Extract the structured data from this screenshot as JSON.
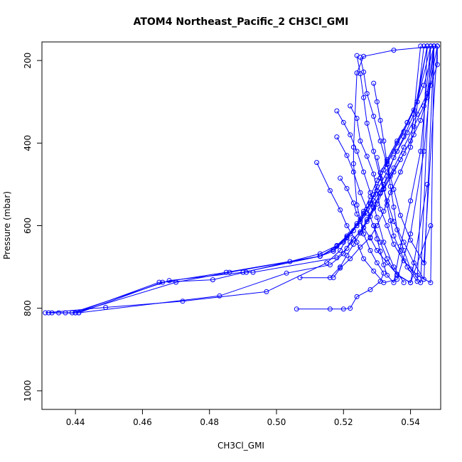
{
  "chart_data": {
    "type": "line",
    "title": "ATOM4 Northeast_Pacific_2 CH3Cl_GMI",
    "xlabel": "CH3Cl_GMI",
    "ylabel": "Pressure (mbar)",
    "xlim": [
      0.43,
      0.549
    ],
    "ylim": [
      1045,
      155
    ],
    "y_reversed": true,
    "x_ticks": [
      "0.44",
      "0.46",
      "0.48",
      "0.50",
      "0.52",
      "0.54"
    ],
    "x_tick_values": [
      0.44,
      0.46,
      0.48,
      0.5,
      0.52,
      0.54
    ],
    "y_ticks": [
      "200",
      "400",
      "600",
      "800",
      "1000"
    ],
    "y_tick_values": [
      200,
      400,
      600,
      800,
      1000
    ],
    "grid": false,
    "legend": "none",
    "color": "#0000ff",
    "marker": "open-circle",
    "series": [
      {
        "x": [
          0.431,
          0.449,
          0.472,
          0.497,
          0.515,
          0.519,
          0.521,
          0.524,
          0.527,
          0.529,
          0.532,
          0.535,
          0.538,
          0.541,
          0.544,
          0.546,
          0.548,
          0.548
        ],
        "y": [
          811,
          798,
          783,
          760,
          690,
          660,
          630,
          600,
          570,
          540,
          500,
          460,
          410,
          360,
          310,
          260,
          210,
          165
        ]
      },
      {
        "x": [
          0.432,
          0.441,
          0.483,
          0.503,
          0.516,
          0.52,
          0.522,
          0.525,
          0.527,
          0.529,
          0.531,
          0.534,
          0.537,
          0.54,
          0.543,
          0.545,
          0.548
        ],
        "y": [
          811,
          811,
          770,
          715,
          695,
          668,
          640,
          615,
          585,
          555,
          520,
          480,
          440,
          395,
          345,
          290,
          165
        ]
      },
      {
        "x": [
          0.433,
          0.44,
          0.465,
          0.481,
          0.504,
          0.513,
          0.518,
          0.521,
          0.524,
          0.526,
          0.528,
          0.53,
          0.533,
          0.536,
          0.539,
          0.542,
          0.545,
          0.547
        ],
        "y": [
          811,
          811,
          737,
          731,
          687,
          668,
          648,
          625,
          600,
          570,
          545,
          515,
          470,
          420,
          375,
          330,
          280,
          165
        ]
      },
      {
        "x": [
          0.435,
          0.441,
          0.466,
          0.485,
          0.513,
          0.517,
          0.52,
          0.523,
          0.525,
          0.528,
          0.53,
          0.532,
          0.535,
          0.538,
          0.541,
          0.544,
          0.547
        ],
        "y": [
          811,
          811,
          737,
          713,
          674,
          658,
          640,
          612,
          585,
          548,
          505,
          465,
          420,
          372,
          320,
          260,
          165
        ]
      },
      {
        "x": [
          0.437,
          0.44,
          0.47,
          0.486,
          0.513,
          0.517,
          0.521,
          0.524,
          0.526,
          0.528,
          0.53,
          0.533,
          0.536,
          0.539,
          0.542,
          0.546
        ],
        "y": [
          811,
          811,
          737,
          713,
          674,
          662,
          628,
          595,
          565,
          530,
          490,
          440,
          395,
          350,
          300,
          165
        ]
      },
      {
        "x": [
          0.439,
          0.468,
          0.49,
          0.513,
          0.518,
          0.522,
          0.525,
          0.527,
          0.529,
          0.531,
          0.533,
          0.536,
          0.539,
          0.542,
          0.545
        ],
        "y": [
          811,
          733,
          713,
          674,
          650,
          620,
          590,
          560,
          525,
          485,
          445,
          400,
          350,
          300,
          165
        ]
      },
      {
        "x": [
          0.491,
          0.493,
          0.518,
          0.521,
          0.523,
          0.526,
          0.528,
          0.53,
          0.532,
          0.535,
          0.538,
          0.541,
          0.544
        ],
        "y": [
          713,
          713,
          678,
          655,
          632,
          605,
          578,
          548,
          512,
          470,
          425,
          380,
          165
        ]
      },
      {
        "x": [
          0.506,
          0.516,
          0.52,
          0.522,
          0.524,
          0.528,
          0.531,
          0.532,
          0.53,
          0.528,
          0.526,
          0.524,
          0.523,
          0.523,
          0.524,
          0.526,
          0.535,
          0.548
        ],
        "y": [
          802,
          802,
          802,
          800,
          772,
          755,
          735,
          715,
          690,
          660,
          620,
          550,
          450,
          410,
          230,
          190,
          175,
          165
        ]
      },
      {
        "x": [
          0.507,
          0.516,
          0.519,
          0.521,
          0.523,
          0.525,
          0.527,
          0.529,
          0.531,
          0.533,
          0.535,
          0.538,
          0.541,
          0.545
        ],
        "y": [
          726,
          726,
          700,
          672,
          645,
          618,
          590,
          558,
          522,
          480,
          435,
          385,
          330,
          165
        ]
      },
      {
        "x": [
          0.517,
          0.519,
          0.522,
          0.525,
          0.528,
          0.53,
          0.532,
          0.534,
          0.537,
          0.54,
          0.543
        ],
        "y": [
          726,
          703,
          680,
          652,
          628,
          600,
          565,
          520,
          470,
          410,
          165
        ]
      },
      {
        "x": [
          0.512,
          0.516,
          0.519,
          0.521,
          0.524,
          0.526,
          0.529,
          0.532,
          0.536,
          0.54,
          0.544,
          0.547
        ],
        "y": [
          447,
          515,
          562,
          600,
          640,
          680,
          710,
          738,
          730,
          620,
          420,
          165
        ]
      },
      {
        "x": [
          0.518,
          0.52,
          0.522,
          0.524,
          0.526,
          0.528,
          0.53,
          0.532,
          0.535,
          0.538
        ],
        "y": [
          322,
          350,
          380,
          420,
          470,
          520,
          580,
          640,
          700,
          738
        ]
      },
      {
        "x": [
          0.518,
          0.521,
          0.523,
          0.525,
          0.527,
          0.529,
          0.531,
          0.533,
          0.536,
          0.54,
          0.546
        ],
        "y": [
          385,
          430,
          470,
          520,
          560,
          600,
          640,
          680,
          720,
          738,
          600
        ]
      },
      {
        "x": [
          0.519,
          0.521,
          0.523,
          0.524,
          0.526,
          0.528,
          0.53,
          0.533,
          0.536,
          0.54,
          0.545
        ],
        "y": [
          485,
          510,
          545,
          572,
          605,
          630,
          660,
          690,
          718,
          738,
          500
        ]
      },
      {
        "x": [
          0.522,
          0.524,
          0.525,
          0.527,
          0.529,
          0.53,
          0.531,
          0.533,
          0.535,
          0.538,
          0.542,
          0.546,
          0.547
        ],
        "y": [
          310,
          340,
          395,
          432,
          475,
          515,
          560,
          600,
          645,
          685,
          720,
          738,
          165
        ]
      },
      {
        "x": [
          0.524,
          0.525,
          0.526,
          0.527,
          0.529,
          0.531,
          0.533,
          0.535,
          0.538,
          0.541,
          0.544,
          0.547
        ],
        "y": [
          188,
          232,
          290,
          352,
          420,
          485,
          540,
          590,
          640,
          690,
          730,
          165
        ]
      },
      {
        "x": [
          0.525,
          0.526,
          0.527,
          0.529,
          0.531,
          0.533,
          0.535,
          0.537,
          0.54,
          0.544,
          0.548
        ],
        "y": [
          192,
          228,
          280,
          335,
          395,
          452,
          512,
          575,
          635,
          690,
          165
        ]
      },
      {
        "x": [
          0.529,
          0.53,
          0.531,
          0.532,
          0.533,
          0.534,
          0.535,
          0.536,
          0.538,
          0.54,
          0.543,
          0.546
        ],
        "y": [
          255,
          300,
          345,
          395,
          450,
          505,
          555,
          610,
          660,
          705,
          738,
          165
        ]
      },
      {
        "x": [
          0.53,
          0.531,
          0.532,
          0.533,
          0.534,
          0.535,
          0.537,
          0.539,
          0.542,
          0.545
        ],
        "y": [
          435,
          472,
          510,
          550,
          588,
          625,
          662,
          700,
          735,
          165
        ]
      },
      {
        "x": [
          0.529,
          0.53,
          0.531,
          0.532,
          0.533,
          0.535,
          0.537,
          0.54,
          0.543,
          0.546
        ],
        "y": [
          600,
          632,
          662,
          695,
          720,
          738,
          650,
          540,
          420,
          165
        ]
      }
    ]
  }
}
